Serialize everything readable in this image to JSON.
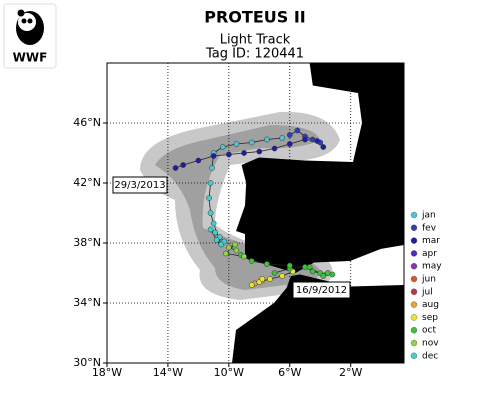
{
  "logo": {
    "text": "WWF"
  },
  "chart_data": {
    "type": "map-track",
    "title": "PROTEUS II",
    "subtitle": [
      "Light Track",
      "Tag ID: 120441"
    ],
    "xlim": [
      -18,
      1.5
    ],
    "ylim": [
      30,
      50
    ],
    "xticks": [
      {
        "value": -18,
        "label": "18°W"
      },
      {
        "value": -14,
        "label": "14°W"
      },
      {
        "value": -10,
        "label": "10°W"
      },
      {
        "value": -6,
        "label": "6°W"
      },
      {
        "value": -2,
        "label": "2°W"
      }
    ],
    "yticks": [
      {
        "value": 30,
        "label": "30°N"
      },
      {
        "value": 34,
        "label": "34°N"
      },
      {
        "value": 38,
        "label": "38°N"
      },
      {
        "value": 42,
        "label": "42°N"
      },
      {
        "value": 46,
        "label": "46°N"
      }
    ],
    "grid": true,
    "legend": "right",
    "annotations": [
      "29/3/2013",
      "16/9/2012"
    ],
    "series": [
      {
        "name": "jan",
        "color": "#4fc3d9",
        "x": [
          -11.1,
          -11.0,
          -10.4,
          -9.5,
          -8.5,
          -7.5,
          -6.5
        ],
        "y": [
          43.0,
          44.0,
          44.4,
          44.6,
          44.7,
          44.9,
          45.0
        ]
      },
      {
        "name": "fev",
        "color": "#2c3fbf",
        "x": [
          -6.0,
          -5.5,
          -5.0,
          -4.5,
          -4.0
        ],
        "y": [
          45.2,
          45.5,
          45.1,
          44.9,
          44.7
        ]
      },
      {
        "name": "mar",
        "color": "#1f1fa0",
        "x": [
          -3.8,
          -4.2,
          -5.0,
          -6.0,
          -7.0,
          -8.0,
          -9.0,
          -10.0,
          -11.0,
          -12.0,
          -13.0,
          -13.5
        ],
        "y": [
          44.4,
          44.8,
          44.9,
          44.6,
          44.3,
          44.1,
          44.0,
          43.9,
          43.8,
          43.5,
          43.2,
          43.0
        ]
      },
      {
        "name": "apr",
        "color": "#4a2bd0",
        "x": [],
        "y": []
      },
      {
        "name": "may",
        "color": "#8a2fbf",
        "x": [],
        "y": []
      },
      {
        "name": "jun",
        "color": "#d9562a",
        "x": [],
        "y": []
      },
      {
        "name": "jul",
        "color": "#c0304a",
        "x": [],
        "y": []
      },
      {
        "name": "aug",
        "color": "#e8a23a",
        "x": [
          -8.3,
          -7.8
        ],
        "y": [
          35.3,
          35.5
        ]
      },
      {
        "name": "sep",
        "color": "#e6e62e",
        "x": [
          -5.8,
          -6.5,
          -7.3,
          -8.0,
          -8.5,
          -7.8
        ],
        "y": [
          36.1,
          35.8,
          35.6,
          35.4,
          35.2,
          35.6
        ]
      },
      {
        "name": "oct",
        "color": "#3cc23c",
        "x": [
          -7.0,
          -6.0,
          -5.0,
          -4.5,
          -4.0,
          -3.5,
          -3.2,
          -3.8,
          -4.7,
          -6.0,
          -7.5,
          -8.5,
          -9.2
        ],
        "y": [
          36.0,
          36.3,
          36.4,
          36.1,
          36.0,
          36.0,
          35.9,
          35.8,
          36.4,
          36.5,
          36.6,
          36.8,
          37.2
        ]
      },
      {
        "name": "nov",
        "color": "#8ad84a",
        "x": [
          -9.5,
          -10.0,
          -9.6,
          -10.2,
          -9.0
        ],
        "y": [
          37.5,
          37.7,
          37.9,
          37.3,
          37.1
        ]
      },
      {
        "name": "dec",
        "color": "#3fd0d0",
        "x": [
          -10.3,
          -10.6,
          -10.9,
          -11.2,
          -10.8,
          -10.5,
          -11.0,
          -11.2,
          -11.3,
          -11.2
        ],
        "y": [
          38.1,
          38.4,
          38.7,
          38.9,
          38.2,
          37.9,
          39.3,
          40.0,
          41.0,
          42.0
        ]
      }
    ]
  }
}
